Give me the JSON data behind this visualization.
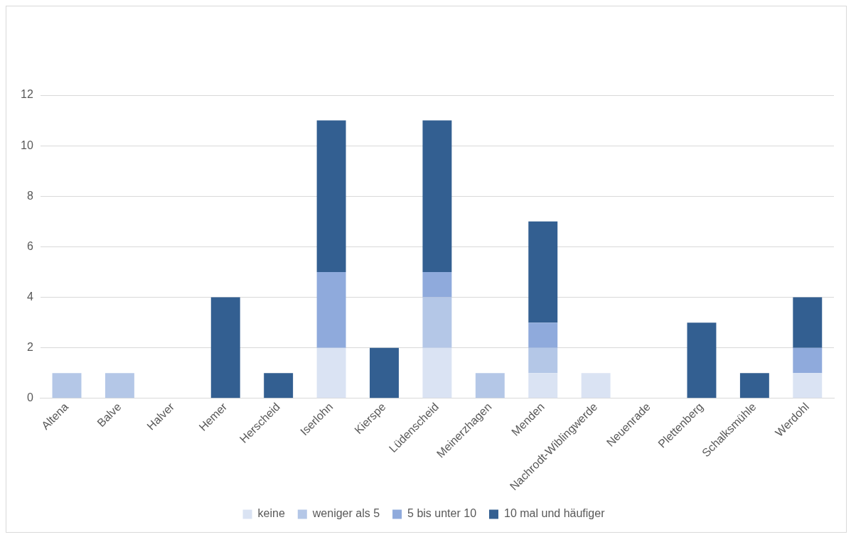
{
  "chart_data": {
    "type": "bar",
    "stacked": true,
    "categories": [
      "Altena",
      "Balve",
      "Halver",
      "Hemer",
      "Herscheid",
      "Iserlohn",
      "Kierspe",
      "Lüdenscheid",
      "Meinerzhagen",
      "Menden",
      "Nachrodt-Wiblingwerde",
      "Neuenrade",
      "Plettenberg",
      "Schalksmühle",
      "Werdohl"
    ],
    "series": [
      {
        "name": "keine",
        "color": "#dae3f3",
        "values": [
          0,
          0,
          0,
          0,
          0,
          2,
          0,
          2,
          0,
          1,
          1,
          0,
          0,
          0,
          1
        ]
      },
      {
        "name": "weniger als 5",
        "color": "#b4c7e7",
        "values": [
          1,
          1,
          0,
          0,
          0,
          0,
          0,
          2,
          1,
          1,
          0,
          0,
          0,
          0,
          0
        ]
      },
      {
        "name": "5 bis unter 10",
        "color": "#8faadc",
        "values": [
          0,
          0,
          0,
          0,
          0,
          3,
          0,
          1,
          0,
          1,
          0,
          0,
          0,
          0,
          1
        ]
      },
      {
        "name": "10 mal und häufiger",
        "color": "#335f91",
        "values": [
          0,
          0,
          0,
          4,
          1,
          6,
          2,
          6,
          0,
          4,
          0,
          0,
          3,
          1,
          2
        ]
      }
    ],
    "ylim": [
      0,
      12
    ],
    "yticks": [
      0,
      2,
      4,
      6,
      8,
      10,
      12
    ],
    "grid": "y",
    "legend": "bottom"
  }
}
